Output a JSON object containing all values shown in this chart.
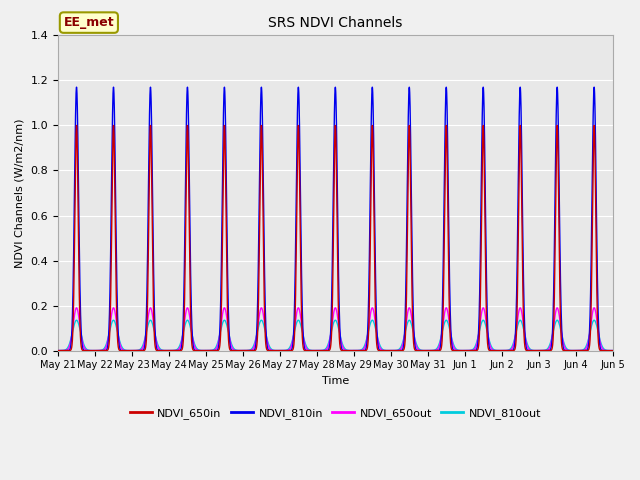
{
  "title": "SRS NDVI Channels",
  "ylabel": "NDVI Channels (W/m2/nm)",
  "xlabel": "Time",
  "annotation": "EE_met",
  "ylim": [
    0.0,
    1.4
  ],
  "fig_bg": "#f0f0f0",
  "plot_bg": "#e8e8e8",
  "colors": {
    "NDVI_650in": "#cc0000",
    "NDVI_810in": "#0000ee",
    "NDVI_650out": "#ff00ff",
    "NDVI_810out": "#00ccdd"
  },
  "x_tick_labels": [
    "May 21",
    "May 22",
    "May 23",
    "May 24",
    "May 25",
    "May 26",
    "May 27",
    "May 28",
    "May 29",
    "May 30",
    "May 31",
    "Jun 1",
    "Jun 2",
    "Jun 3",
    "Jun 4",
    "Jun 5"
  ],
  "n_days": 15,
  "peak_650in": 1.0,
  "peak_810in": 1.17,
  "peak_650out": 0.19,
  "peak_810out": 0.135,
  "points_per_day": 500
}
